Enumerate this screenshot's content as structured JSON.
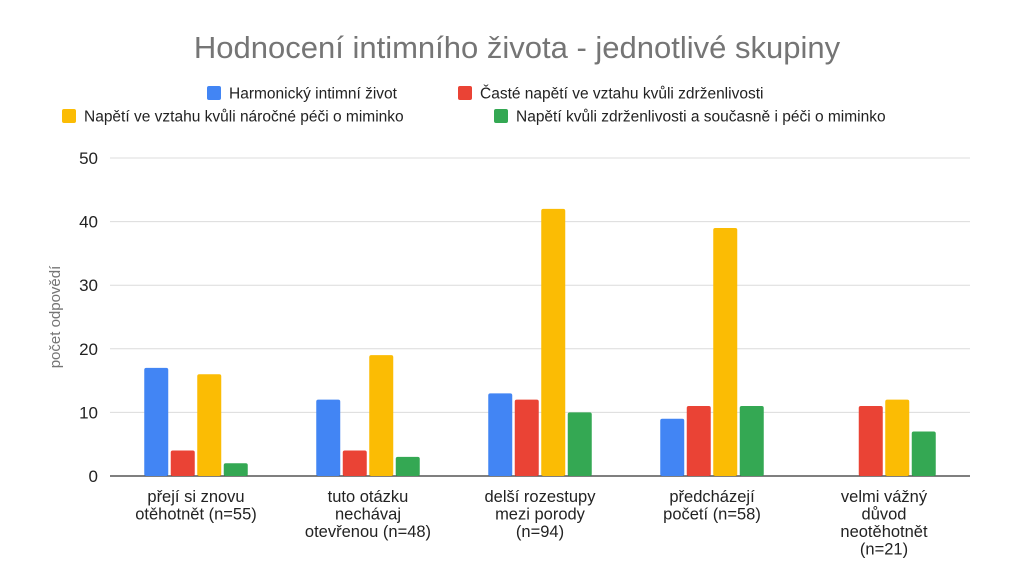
{
  "chart_data": {
    "type": "bar",
    "title": "Hodnocení intimního života - jednotlivé skupiny",
    "xlabel": "",
    "ylabel": "počet odpovědí",
    "ylim": [
      0,
      50
    ],
    "yticks": [
      "0",
      "10",
      "20",
      "30",
      "40",
      "50"
    ],
    "grid": true,
    "legend_position": "top",
    "categories": [
      [
        "přejí si znovu",
        "otěhotnět (n=55)"
      ],
      [
        "tuto otázku",
        "nechávaj",
        "otevřenou (n=48)"
      ],
      [
        "delší rozestupy",
        "mezi porody",
        "(n=94)"
      ],
      [
        "předcházejí",
        "početí (n=58)"
      ],
      [
        "velmi vážný",
        "důvod",
        "neotěhotnět",
        "(n=21)"
      ]
    ],
    "series": [
      {
        "name": "Harmonický intimní život",
        "color": "#4285F4",
        "values": [
          17,
          12,
          13,
          9,
          0
        ]
      },
      {
        "name": "Časté napětí ve vztahu kvůli zdrženlivosti",
        "color": "#EA4335",
        "values": [
          4,
          4,
          12,
          11,
          11
        ]
      },
      {
        "name": "Napětí ve vztahu kvůli náročné péči o miminko",
        "color": "#FBBC04",
        "values": [
          16,
          19,
          42,
          39,
          12
        ]
      },
      {
        "name": "Napětí kvůli zdrženlivosti a současně i péči o miminko",
        "color": "#34A853",
        "values": [
          2,
          3,
          10,
          11,
          7
        ]
      }
    ]
  }
}
